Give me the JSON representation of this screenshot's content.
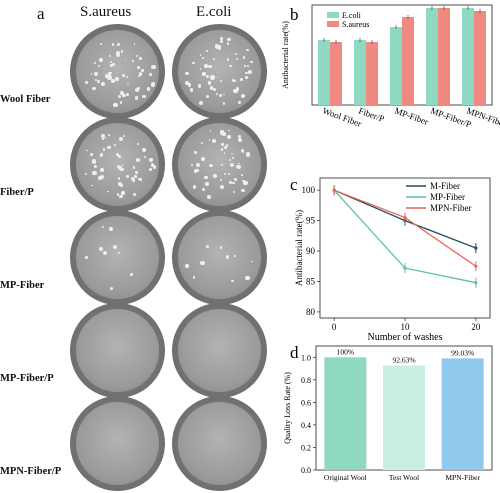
{
  "panel_a": {
    "letter": "a",
    "col_headers": [
      "S.aureus",
      "E.coli"
    ],
    "rows": [
      {
        "label": "Wool Fiber",
        "left": "a1",
        "right": "a2",
        "colonies": "high"
      },
      {
        "label": "Fiber/P",
        "left": "b1",
        "right": "b2",
        "colonies": "high"
      },
      {
        "label": "MP-Fiber",
        "left": "c1",
        "right": "c2",
        "colonies": "low"
      },
      {
        "label": "MP-Fiber/P",
        "left": "d1",
        "right": "d2",
        "colonies": "none"
      },
      {
        "label": "MPN-Fiber/P",
        "left": "e1",
        "right": "e2",
        "colonies": "none"
      }
    ]
  },
  "chart_data": [
    {
      "panel": "b",
      "type": "bar",
      "ylabel": "Antibacterial rate(%)",
      "categories": [
        "Wool Fiber",
        "Fiber/P",
        "MP-Fiber",
        "MP-Fiber/P",
        "MPN-Fiber"
      ],
      "series": [
        {
          "name": "E.coli",
          "values": [
            65,
            65,
            78,
            97,
            97
          ],
          "color": "#8fd9c2"
        },
        {
          "name": "S.aureus",
          "values": [
            63,
            63,
            88,
            97,
            94
          ],
          "color": "#f08a80"
        }
      ],
      "ylim": [
        0,
        100
      ],
      "legend": "top-left"
    },
    {
      "panel": "c",
      "type": "line",
      "xlabel": "Number of washes",
      "ylabel": "Antibacterial rate(%)",
      "x": [
        0,
        10,
        20
      ],
      "xticks": [
        "0",
        "10",
        "20"
      ],
      "yticks": [
        "80",
        "85",
        "90",
        "95",
        "100"
      ],
      "ylim": [
        79,
        102
      ],
      "series": [
        {
          "name": "M-Fiber",
          "values": [
            100,
            95,
            90.5
          ],
          "color": "#1f4e5f"
        },
        {
          "name": "MP-Fiber",
          "values": [
            100,
            87.2,
            84.8
          ],
          "color": "#5cc0a8"
        },
        {
          "name": "MPN-Fiber",
          "values": [
            100,
            95.5,
            87.5
          ],
          "color": "#e8675a"
        }
      ],
      "legend": "top-right"
    },
    {
      "panel": "d",
      "type": "bar",
      "ylabel": "Quality Loss Rate (%)",
      "categories": [
        "Original Wool",
        "Test Wool",
        "MPN-Fiber"
      ],
      "values": [
        1.0,
        0.9263,
        0.9903
      ],
      "data_labels": [
        "100%",
        "92.63%",
        "99.03%"
      ],
      "colors": [
        "#8fd9c2",
        "#c7f0e2",
        "#8fc9ee"
      ],
      "yticks": [
        "0.0",
        "0.2",
        "0.4",
        "0.6",
        "0.8",
        "1.0"
      ],
      "ylim": [
        0,
        1.1
      ]
    }
  ],
  "panel_letters": {
    "b": "b",
    "c": "c",
    "d": "d"
  }
}
